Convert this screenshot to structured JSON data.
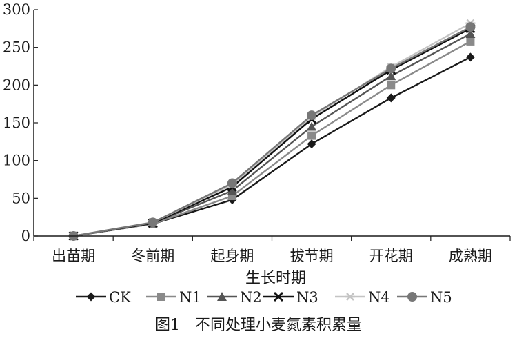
{
  "chart_data": {
    "type": "line",
    "categories": [
      "出苗期",
      "冬前期",
      "起身期",
      "拔节期",
      "开花期",
      "成熟期"
    ],
    "xlabel": "生长时期",
    "ylabel": "",
    "ylim": [
      0,
      300
    ],
    "yticks": [
      0,
      50,
      100,
      150,
      200,
      250,
      300
    ],
    "grid": false,
    "legend": "bottom",
    "caption": "图1　不同处理小麦氮素积累量",
    "series": [
      {
        "name": "CK",
        "marker": "diamond",
        "color": "#1a1a1a",
        "values": [
          0,
          16,
          48,
          122,
          183,
          237
        ]
      },
      {
        "name": "N1",
        "marker": "square",
        "color": "#8a8a8a",
        "values": [
          0,
          16,
          53,
          133,
          200,
          258
        ]
      },
      {
        "name": "N2",
        "marker": "triangle",
        "color": "#555555",
        "values": [
          0,
          17,
          60,
          145,
          212,
          268
        ]
      },
      {
        "name": "N3",
        "marker": "x",
        "color": "#111111",
        "values": [
          0,
          17,
          65,
          155,
          220,
          275
        ]
      },
      {
        "name": "N4",
        "marker": "star",
        "color": "#c4c4c4",
        "values": [
          0,
          18,
          68,
          158,
          224,
          282
        ]
      },
      {
        "name": "N5",
        "marker": "circle",
        "color": "#777777",
        "values": [
          0,
          18,
          70,
          160,
          222,
          277
        ]
      }
    ]
  }
}
